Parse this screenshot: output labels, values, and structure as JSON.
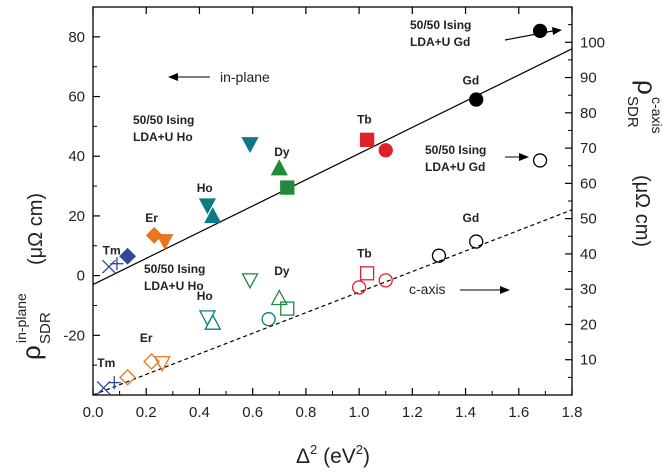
{
  "chart_data": {
    "type": "scatter",
    "xlabel_main": "Δ",
    "xlabel_sup": "2",
    "xlabel_unit": " (eV",
    "xlabel_unit_sup": "2",
    "xlabel_close": ")",
    "ylabel_left_rho": "ρ",
    "ylabel_left_sub": "SDR",
    "ylabel_left_sup": "in-plane",
    "ylabel_left_unit": "(μΩ cm)",
    "ylabel_right_rho": "ρ",
    "ylabel_right_sub": "SDR",
    "ylabel_right_sup": "c-axis",
    "ylabel_right_unit": "(μΩ cm)",
    "xlim": [
      0,
      1.8
    ],
    "ylim_left": [
      -40,
      90
    ],
    "ylim_right": [
      0,
      110
    ],
    "x_ticks": [
      "0.0",
      "0.2",
      "0.4",
      "0.6",
      "0.8",
      "1.0",
      "1.2",
      "1.4",
      "1.6",
      "1.8"
    ],
    "y_left_ticks": [
      "-20",
      "0",
      "20",
      "40",
      "60",
      "80"
    ],
    "y_right_ticks": [
      "10",
      "20",
      "30",
      "40",
      "50",
      "60",
      "70",
      "80",
      "90",
      "100"
    ],
    "colors": {
      "Tm": "#2e4a9a",
      "Er": "#e8761d",
      "Ho": "#0c7a83",
      "Dy": "#1e8a3a",
      "Tb": "#e0202a",
      "Gd": "#000000",
      "fit": "#000000"
    },
    "series": [
      {
        "name": "in-plane",
        "axis": "left",
        "filled": true,
        "points": [
          {
            "element": "Tm",
            "marker": "x",
            "x": 0.06,
            "y": 3
          },
          {
            "element": "Tm",
            "marker": "plus",
            "x": 0.09,
            "y": 4
          },
          {
            "element": "Tm",
            "marker": "diamond",
            "x": 0.13,
            "y": 6.5
          },
          {
            "element": "Er",
            "marker": "diamond",
            "x": 0.23,
            "y": 13.5
          },
          {
            "element": "Er",
            "marker": "triangle-down",
            "x": 0.27,
            "y": 11.5
          },
          {
            "element": "Ho",
            "marker": "triangle-down",
            "x": 0.43,
            "y": 23.5
          },
          {
            "element": "Ho",
            "marker": "triangle-up",
            "x": 0.45,
            "y": 20
          },
          {
            "element": "Ho",
            "marker": "triangle-down",
            "x": 0.59,
            "y": 44
          },
          {
            "element": "Dy",
            "marker": "triangle-up",
            "x": 0.7,
            "y": 36
          },
          {
            "element": "Dy",
            "marker": "square",
            "x": 0.73,
            "y": 29.5
          },
          {
            "element": "Tb",
            "marker": "square",
            "x": 1.03,
            "y": 45.5
          },
          {
            "element": "Tb",
            "marker": "circle",
            "x": 1.1,
            "y": 42
          },
          {
            "element": "Gd",
            "marker": "circle",
            "x": 1.44,
            "y": 59
          },
          {
            "element": "Gd",
            "marker": "circle",
            "x": 1.68,
            "y": 82
          }
        ]
      },
      {
        "name": "c-axis",
        "axis": "right",
        "filled": false,
        "points": [
          {
            "element": "Tm",
            "marker": "x",
            "x": 0.04,
            "y": 2
          },
          {
            "element": "Tm",
            "marker": "plus",
            "x": 0.08,
            "y": 3.5
          },
          {
            "element": "Er",
            "marker": "diamond",
            "x": 0.13,
            "y": 5
          },
          {
            "element": "Er",
            "marker": "diamond",
            "x": 0.22,
            "y": 9.5
          },
          {
            "element": "Er",
            "marker": "triangle-down",
            "x": 0.26,
            "y": 9
          },
          {
            "element": "Ho",
            "marker": "triangle-down",
            "x": 0.43,
            "y": 22
          },
          {
            "element": "Ho",
            "marker": "triangle-up",
            "x": 0.45,
            "y": 20.5
          },
          {
            "element": "Ho",
            "marker": "circle",
            "x": 0.66,
            "y": 21.5
          },
          {
            "element": "Dy",
            "marker": "triangle-down",
            "x": 0.59,
            "y": 32.5
          },
          {
            "element": "Dy",
            "marker": "triangle-up",
            "x": 0.7,
            "y": 27.5
          },
          {
            "element": "Dy",
            "marker": "square",
            "x": 0.73,
            "y": 24.5
          },
          {
            "element": "Tb",
            "marker": "circle",
            "x": 1.0,
            "y": 30.5
          },
          {
            "element": "Tb",
            "marker": "square",
            "x": 1.03,
            "y": 34.5
          },
          {
            "element": "Tb",
            "marker": "circle",
            "x": 1.1,
            "y": 32.5
          },
          {
            "element": "Gd",
            "marker": "circle",
            "x": 1.3,
            "y": 39.5
          },
          {
            "element": "Gd",
            "marker": "circle",
            "x": 1.44,
            "y": 43.5
          },
          {
            "element": "Gd",
            "marker": "circle",
            "x": 1.68,
            "y": 66.5
          }
        ]
      }
    ],
    "fit_lines": [
      {
        "axis": "left",
        "style": "solid",
        "x0": 0.0,
        "y0": -3,
        "x1": 1.8,
        "y1": 76
      },
      {
        "axis": "right",
        "style": "dashed",
        "x0": 0.0,
        "y0": 0,
        "x1": 1.8,
        "y1": 52.5
      }
    ],
    "annotations": [
      {
        "text": "Tm",
        "bold": true,
        "x": 0.07,
        "y": 7,
        "axis": "left"
      },
      {
        "text": "Er",
        "bold": true,
        "x": 0.22,
        "y": 18,
        "axis": "left"
      },
      {
        "text": "Ho",
        "bold": true,
        "x": 0.42,
        "y": 28,
        "axis": "left"
      },
      {
        "text": "Dy",
        "bold": true,
        "x": 0.71,
        "y": 40,
        "axis": "left"
      },
      {
        "text": "Tb",
        "bold": true,
        "x": 1.02,
        "y": 51,
        "axis": "left"
      },
      {
        "text": "Gd",
        "bold": true,
        "x": 1.42,
        "y": 64,
        "axis": "left"
      },
      {
        "text": "Tm",
        "bold": true,
        "x": 0.05,
        "y": 8,
        "axis": "right"
      },
      {
        "text": "Er",
        "bold": true,
        "x": 0.2,
        "y": 15,
        "axis": "right"
      },
      {
        "text": "Ho",
        "bold": true,
        "x": 0.42,
        "y": 27,
        "axis": "right"
      },
      {
        "text": "Dy",
        "bold": true,
        "x": 0.71,
        "y": 34,
        "axis": "right"
      },
      {
        "text": "Tb",
        "bold": true,
        "x": 1.02,
        "y": 39,
        "axis": "right"
      },
      {
        "text": "Gd",
        "bold": true,
        "x": 1.42,
        "y": 49,
        "axis": "right"
      }
    ],
    "callouts": {
      "gd_in_plane": [
        "50/50 Ising",
        "LDA+U Gd"
      ],
      "ho_in_plane": [
        "50/50 Ising",
        "LDA+U Ho"
      ],
      "gd_c_axis": [
        "50/50 Ising",
        "LDA+U Gd"
      ],
      "ho_c_axis": [
        "50/50 Ising",
        "LDA+U Ho"
      ],
      "in_plane_label": "in-plane",
      "c_axis_label": "c-axis"
    }
  }
}
